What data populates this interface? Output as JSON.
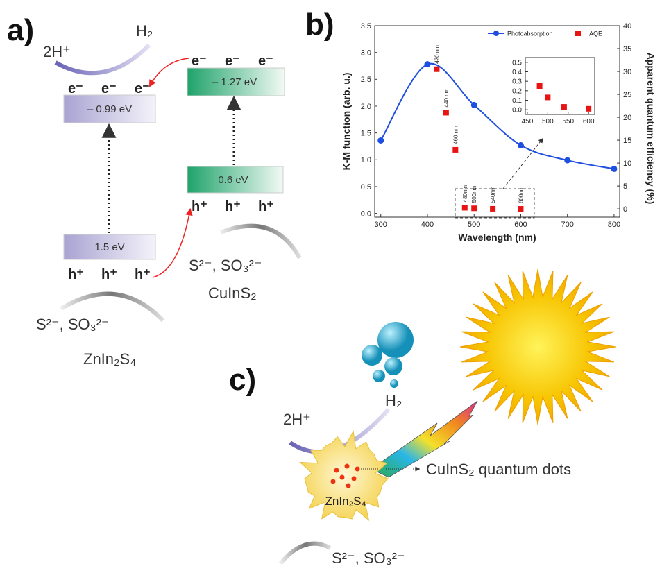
{
  "panel_a": {
    "label": "a)",
    "left": {
      "proton": "2H⁺",
      "hydrogen": "H₂",
      "electrons": [
        "e⁻",
        "e⁻",
        "e⁻"
      ],
      "cb": "– 0.99 eV",
      "vb": "1.5 eV",
      "holes": [
        "h⁺",
        "h⁺",
        "h⁺"
      ],
      "scavenger": "S²⁻, SO₃²⁻",
      "material": "ZnIn₂S₄"
    },
    "right": {
      "electrons": [
        "e⁻",
        "e⁻",
        "e⁻"
      ],
      "cb": "– 1.27 eV",
      "vb": "0.6 eV",
      "holes": [
        "h⁺",
        "h⁺",
        "h⁺"
      ],
      "scavenger": "S²⁻, SO₃²⁻",
      "material": "CuInS₂"
    }
  },
  "chart_data": [
    {
      "type": "line",
      "panel_label": "b)",
      "xlabel": "Wavelength (nm)",
      "ylabel": "K-M function (arb. u.)",
      "y2label": "Apparent quantum efficiency (%)",
      "xlim": [
        287,
        812
      ],
      "xticks": [
        300,
        400,
        500,
        600,
        700,
        800
      ],
      "ylim": [
        -0.07,
        3.5
      ],
      "yticks": [
        {
          "value": 0,
          "label": "0.0"
        },
        0.5,
        {
          "value": 1,
          "label": "1.0"
        },
        1.5,
        {
          "value": 2,
          "label": "2.0"
        },
        2.5,
        {
          "value": 3,
          "label": "3.0"
        },
        3.5
      ],
      "y2lim": [
        -1.8,
        40
      ],
      "y2ticks": [
        0,
        5,
        10,
        15,
        20,
        25,
        30,
        35,
        40
      ],
      "legend": "upper right",
      "series": [
        {
          "name": "Photoabsorption",
          "color": "#1f4fe0",
          "style": "line-markers",
          "x": [
            300,
            400,
            500,
            600,
            700,
            800
          ],
          "values": [
            1.36,
            2.78,
            2.02,
            1.27,
            0.99,
            0.83
          ]
        },
        {
          "name": "AQE",
          "color": "#e81414",
          "style": "markers",
          "axis": "y2",
          "x": [
            420,
            440,
            460,
            480,
            500,
            540,
            600
          ],
          "values": [
            30.5,
            21,
            12.9,
            0.25,
            0.13,
            0.03,
            0.01
          ],
          "point_labels": [
            "420 nm",
            "440 nm",
            "460 nm",
            "480nm",
            "500nm",
            "540nm",
            "600nm"
          ]
        }
      ]
    },
    {
      "type": "scatter",
      "xlim": [
        445,
        615
      ],
      "xticks": [
        450,
        500,
        550,
        600
      ],
      "ylim": [
        -0.05,
        0.55
      ],
      "yticks": [
        {
          "value": 0,
          "label": "0.0"
        },
        0.1,
        0.2,
        0.3,
        0.4,
        0.5
      ],
      "series": [
        {
          "color": "#e81414",
          "style": "markers",
          "x": [
            480,
            500,
            540,
            600
          ],
          "values": [
            0.25,
            0.13,
            0.03,
            0.01
          ]
        }
      ]
    }
  ],
  "panel_c": {
    "label": "c)",
    "hydrogen": "H₂",
    "proton": "2H⁺",
    "dots": "CuInS₂ quantum dots",
    "host": "ZnIn₂S₄",
    "scavenger": "S²⁻, SO₃²⁻"
  }
}
